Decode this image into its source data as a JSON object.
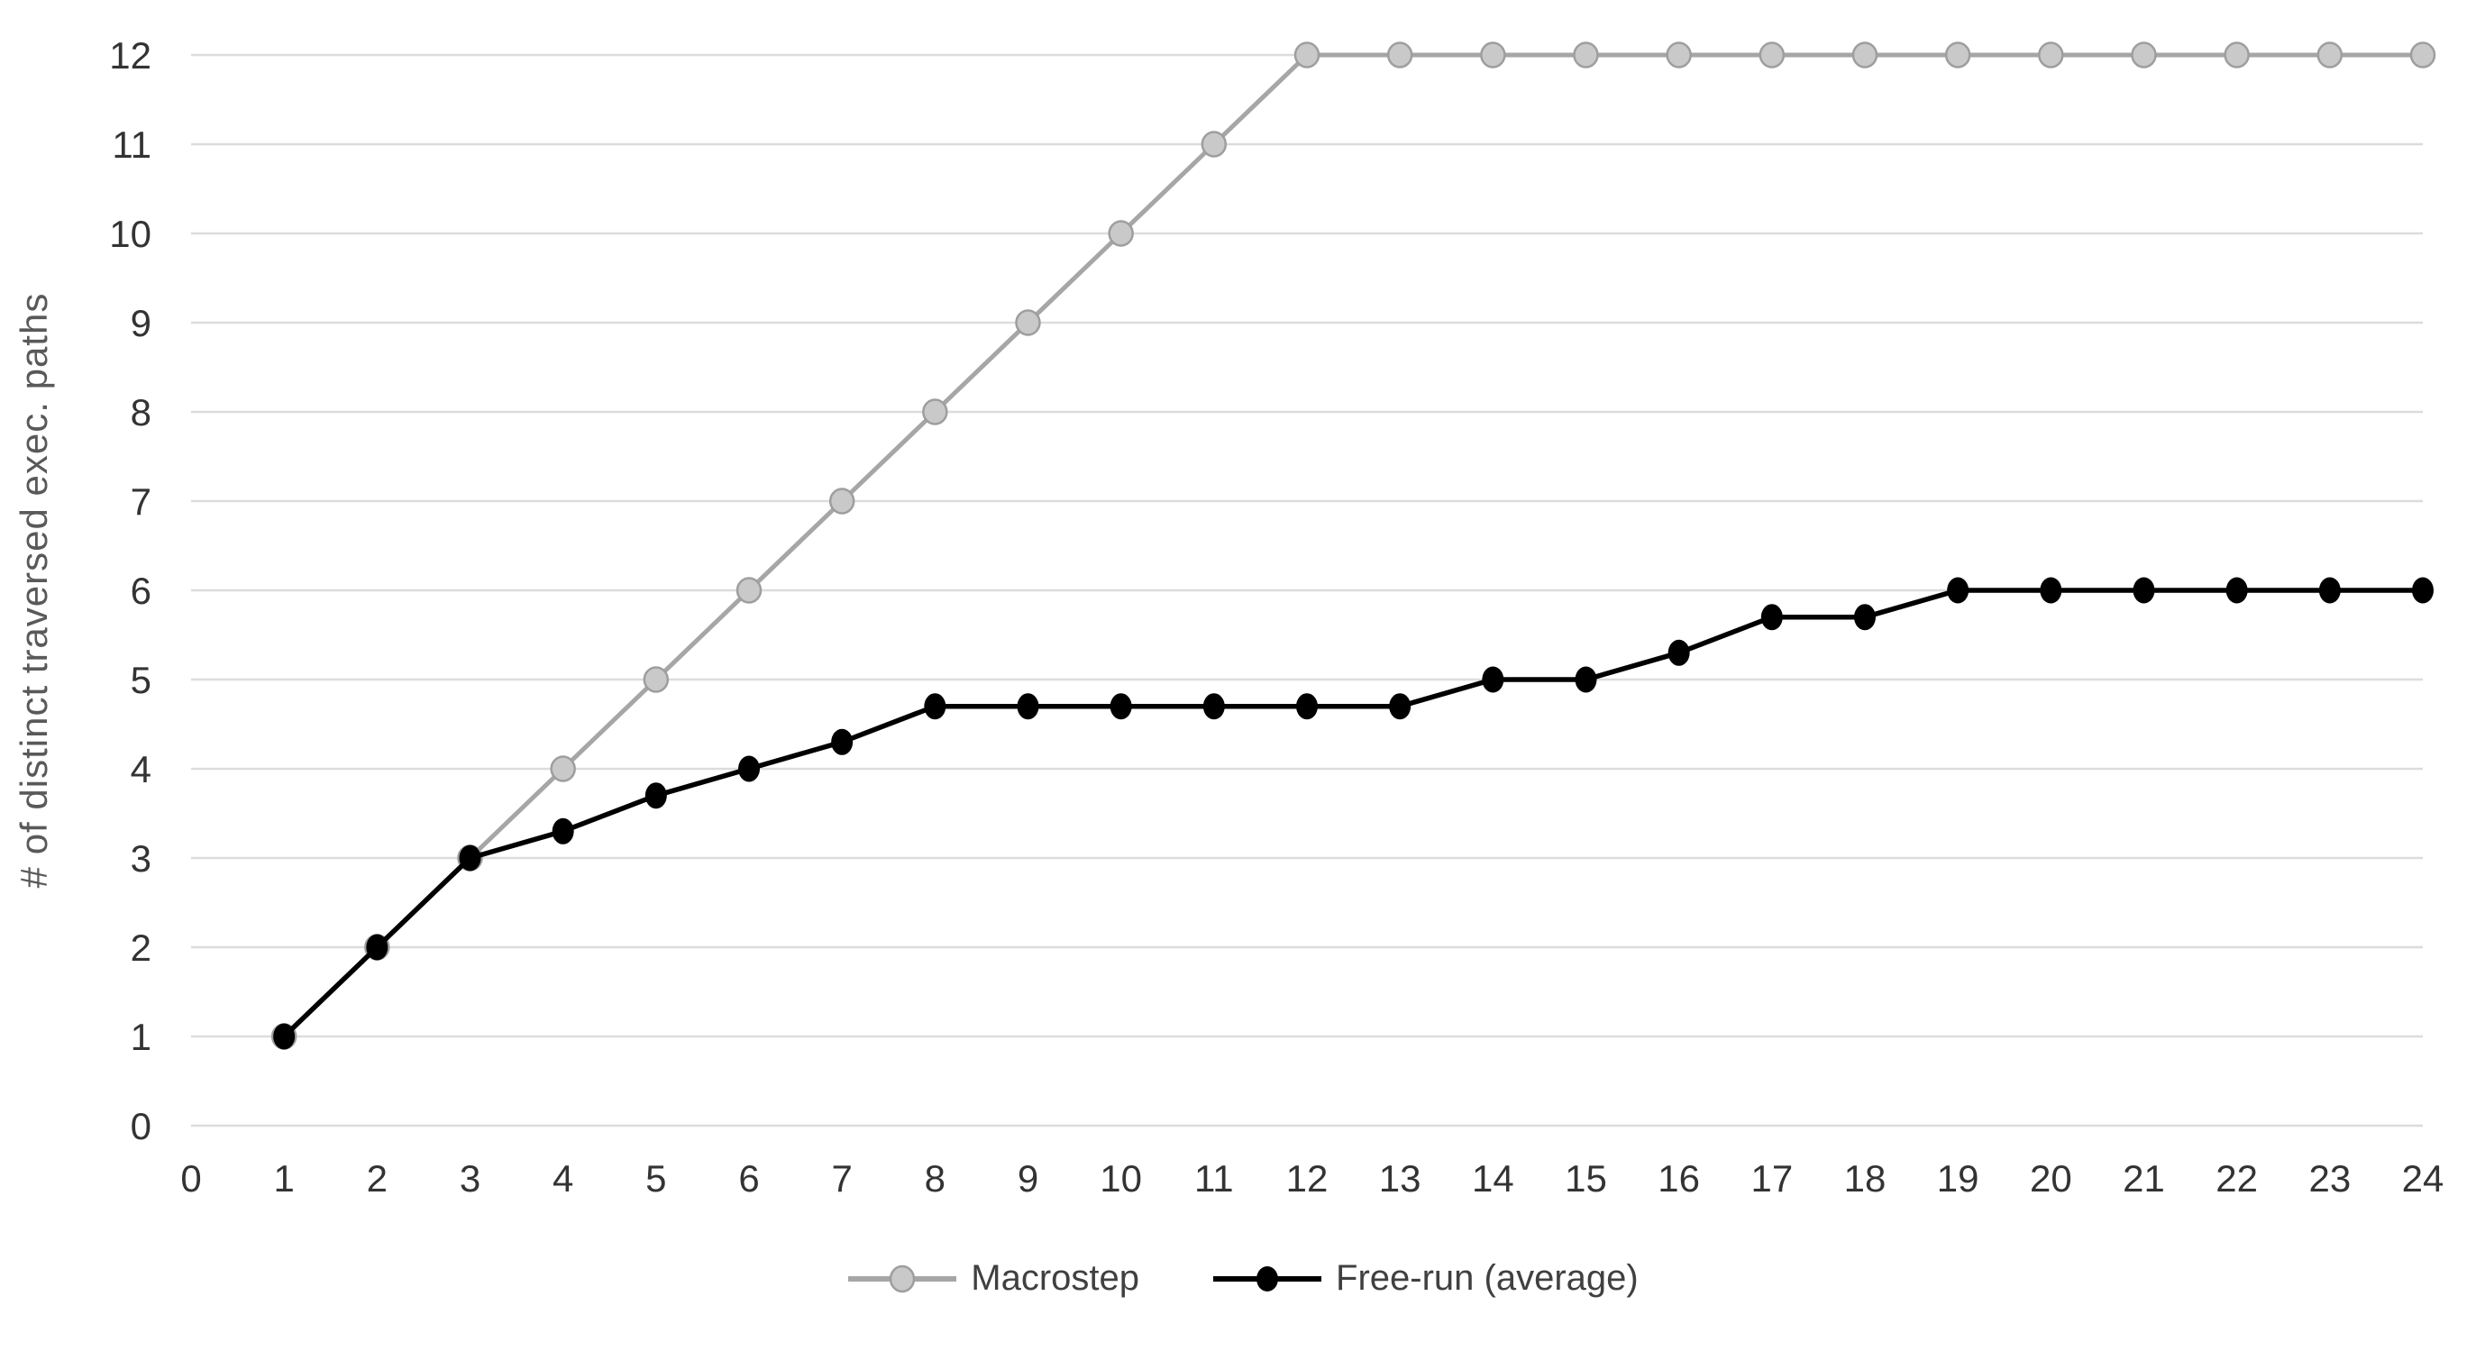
{
  "chart_data": {
    "type": "line",
    "title": "",
    "xlabel": "",
    "ylabel": "# of distinct traversed exec. paths",
    "xlim": [
      0,
      24
    ],
    "ylim": [
      0,
      12
    ],
    "x_tick_labels": [
      "0",
      "1",
      "2",
      "3",
      "4",
      "5",
      "6",
      "7",
      "8",
      "9",
      "10",
      "11",
      "12",
      "13",
      "14",
      "15",
      "16",
      "17",
      "18",
      "19",
      "20",
      "21",
      "22",
      "23",
      "24"
    ],
    "y_tick_labels": [
      "0",
      "1",
      "2",
      "3",
      "4",
      "5",
      "6",
      "7",
      "8",
      "9",
      "10",
      "11",
      "12"
    ],
    "grid": "horizontal",
    "legend_position": "bottom-center",
    "x": [
      1,
      2,
      3,
      4,
      5,
      6,
      7,
      8,
      9,
      10,
      11,
      12,
      13,
      14,
      15,
      16,
      17,
      18,
      19,
      20,
      21,
      22,
      23,
      24
    ],
    "series": [
      {
        "name": "Macrostep",
        "line_color": "#a6a6a6",
        "marker_fill": "#c9c9c9",
        "marker_stroke": "#9e9e9e",
        "values": [
          1,
          2,
          3,
          4,
          5,
          6,
          7,
          8,
          9,
          10,
          11,
          12,
          12,
          12,
          12,
          12,
          12,
          12,
          12,
          12,
          12,
          12,
          12,
          12
        ]
      },
      {
        "name": "Free-run (average)",
        "line_color": "#000000",
        "marker_fill": "#000000",
        "marker_stroke": "#000000",
        "values": [
          1,
          2,
          3,
          3.3,
          3.7,
          4,
          4.3,
          4.7,
          4.7,
          4.7,
          4.7,
          4.7,
          4.7,
          5,
          5,
          5.3,
          5.7,
          5.7,
          6,
          6,
          6,
          6,
          6,
          6
        ]
      }
    ],
    "colors": {
      "gridline": "#dcdcdc",
      "tick_label": "#333333",
      "axis_title": "#595959",
      "legend_text": "#404040",
      "background": "#ffffff"
    }
  }
}
